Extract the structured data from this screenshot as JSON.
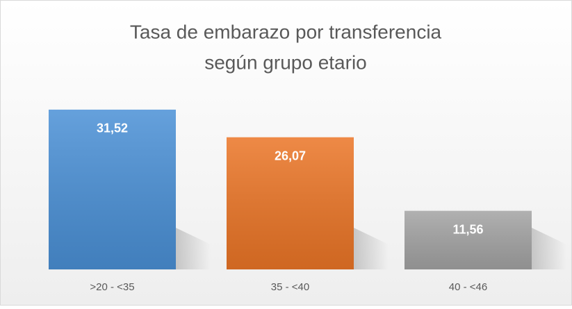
{
  "chart_data": {
    "type": "bar",
    "title": [
      "Tasa de embarazo por transferencia",
      "según grupo etario"
    ],
    "categories": [
      ">20 - <35",
      "35 - <40",
      "40 - <46"
    ],
    "values": [
      31.52,
      26.07,
      11.56
    ],
    "value_labels": [
      "31,52",
      "26,07",
      "11,56"
    ],
    "colors": [
      "#4a90d6",
      "#eb7526",
      "#a3a3a3"
    ],
    "ylim": [
      0,
      35
    ],
    "grid": false
  }
}
